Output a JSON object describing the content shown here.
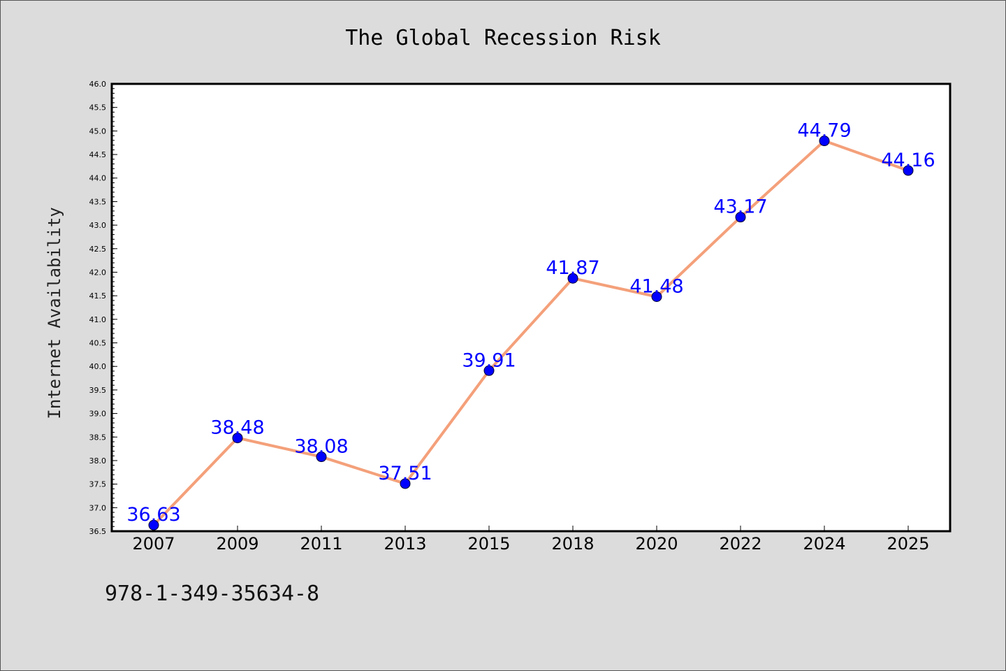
{
  "chart_data": {
    "type": "line",
    "title": "The Global Recession Risk",
    "xlabel": "",
    "ylabel": "Internet Availability",
    "categories": [
      "2007",
      "2009",
      "2011",
      "2013",
      "2015",
      "2018",
      "2020",
      "2022",
      "2024",
      "2025"
    ],
    "series": [
      {
        "values": [
          36.63,
          38.48,
          38.08,
          37.51,
          39.91,
          41.87,
          41.48,
          43.17,
          44.79,
          44.16
        ]
      }
    ],
    "data_labels": [
      "36.63",
      "38.48",
      "38.08",
      "37.51",
      "39.91",
      "41.87",
      "41.48",
      "43.17",
      "44.79",
      "44.16"
    ],
    "ylim": [
      36.5,
      46.0
    ],
    "yticks": [
      "36.5",
      "37.0",
      "37.5",
      "38.0",
      "38.5",
      "39.0",
      "39.5",
      "40.0",
      "40.5",
      "41.0",
      "41.5",
      "42.0",
      "42.5",
      "43.0",
      "43.5",
      "44.0",
      "44.5",
      "45.0",
      "45.5",
      "46.0"
    ],
    "grid": false,
    "legend": "none",
    "colors": {
      "line": "#f4a07a",
      "marker": "#0000ff",
      "label": "#0000ff",
      "background": "#dcdcdc",
      "plot_bg": "#ffffff"
    }
  },
  "footer": {
    "code": "978-1-349-35634-8"
  }
}
